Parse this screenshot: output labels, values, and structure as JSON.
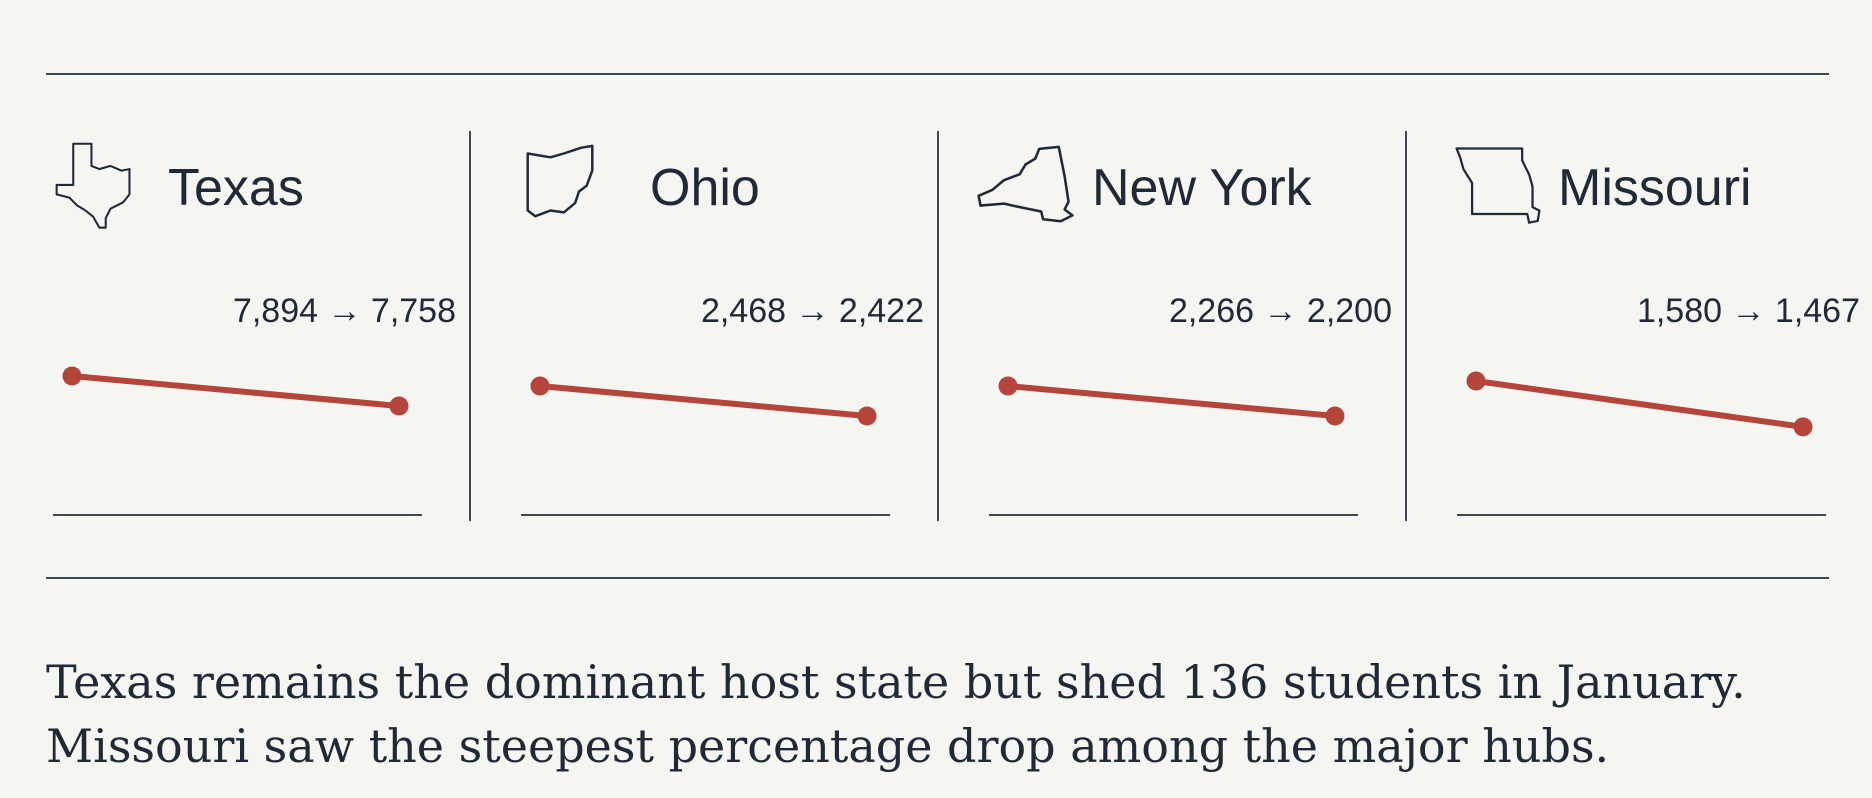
{
  "colors": {
    "background": "#f5f5f1",
    "text": "#1f2a36",
    "rule": "#3e4751",
    "line": "#b5443a"
  },
  "chart_data": {
    "type": "line",
    "series": [
      {
        "state": "Texas",
        "icon": "texas-outline-icon",
        "values": [
          7894,
          7758
        ],
        "label": "7,894 → 7,758"
      },
      {
        "state": "Ohio",
        "icon": "ohio-outline-icon",
        "values": [
          2468,
          2422
        ],
        "label": "2,468 → 2,422"
      },
      {
        "state": "New York",
        "icon": "new-york-outline-icon",
        "values": [
          2266,
          2200
        ],
        "label": "2,266 → 2,200"
      },
      {
        "state": "Missouri",
        "icon": "missouri-outline-icon",
        "values": [
          1580,
          1467
        ],
        "label": "1,580 → 1,467"
      }
    ],
    "grid": false
  },
  "caption": {
    "line1": "Texas remains the dominant host state but shed 136 students in January.",
    "line2": "Missouri saw the steepest percentage drop among the major hubs."
  }
}
